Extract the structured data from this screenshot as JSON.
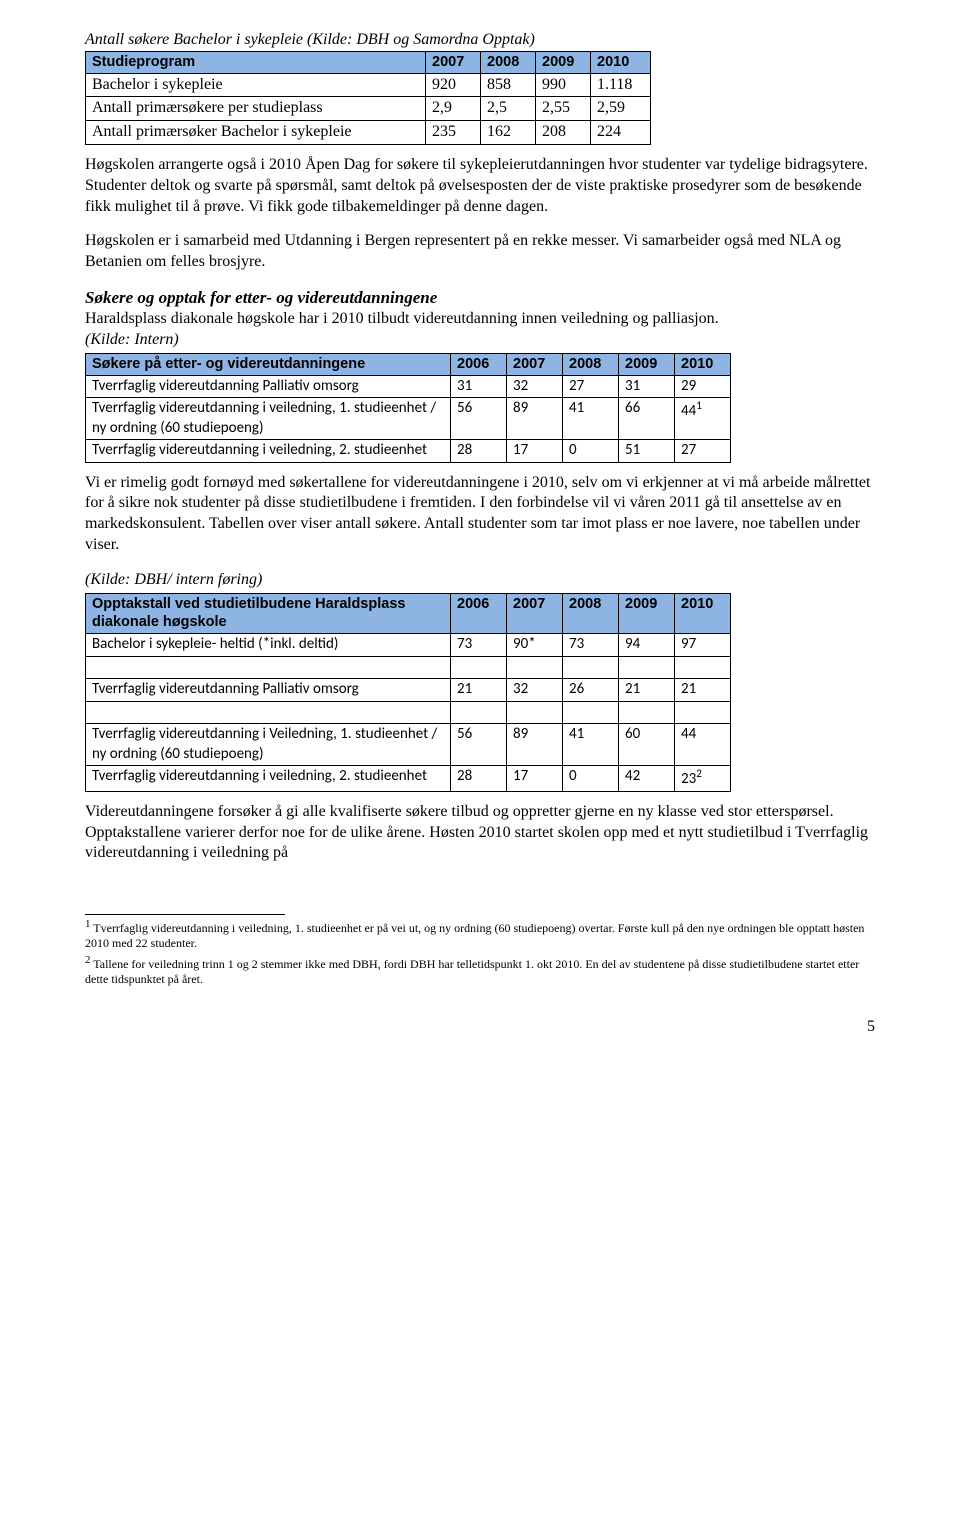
{
  "table1": {
    "caption": "Antall søkere Bachelor i sykepleie (Kilde: DBH og Samordna Opptak)",
    "header": [
      "Studieprogram",
      "2007",
      "2008",
      "2009",
      "2010"
    ],
    "rows": [
      [
        "Bachelor i sykepleie",
        "920",
        "858",
        "990",
        "1.118"
      ],
      [
        "Antall primærsøkere per studieplass",
        "2,9",
        "2,5",
        "2,55",
        "2,59"
      ],
      [
        "Antall primærsøker Bachelor i sykepleie",
        "235",
        "162",
        "208",
        "224"
      ]
    ],
    "col_widths": [
      "340px",
      "55px",
      "55px",
      "55px",
      "60px"
    ]
  },
  "para1": "Høgskolen arrangerte også i 2010 Åpen Dag for søkere til sykepleierutdanningen hvor studenter var tydelige bidragsytere. Studenter deltok og svarte på spørsmål, samt deltok på øvelsesposten der de viste praktiske prosedyrer som de besøkende fikk mulighet til å prøve. Vi fikk gode tilbakemeldinger på denne dagen.",
  "para2": "Høgskolen er i samarbeid med Utdanning i Bergen representert på en rekke messer. Vi samarbeider også med NLA og Betanien om felles brosjyre.",
  "section1": {
    "title": "Søkere og opptak for etter- og videreutdanningene",
    "text1": "Haraldsplass diakonale høgskole har i 2010 tilbudt videreutdanning innen veiledning og palliasjon.",
    "text2": " (Kilde: Intern)"
  },
  "table2": {
    "header": [
      "Søkere på etter- og videreutdanningene",
      "2006",
      "2007",
      "2008",
      "2009",
      "2010"
    ],
    "rows": [
      {
        "cells": [
          "Tverrfaglig videreutdanning Palliativ omsorg",
          "31",
          "32",
          "27",
          "31",
          "29"
        ],
        "sup": ""
      },
      {
        "cells": [
          "Tverrfaglig videreutdanning i veiledning, 1. studieenhet / ny ordning (60 studiepoeng)",
          "56",
          "89",
          "41",
          "66",
          "44"
        ],
        "sup": "1"
      },
      {
        "cells": [
          "Tverrfaglig videreutdanning i veiledning, 2. studieenhet",
          "28",
          "17",
          "0",
          "51",
          "27"
        ],
        "sup": ""
      }
    ],
    "col_widths": [
      "365px",
      "56px",
      "56px",
      "56px",
      "56px",
      "56px"
    ]
  },
  "para3": "Vi er rimelig godt fornøyd med søkertallene for videreutdanningene i 2010, selv om vi erkjenner at vi må arbeide målrettet for å sikre nok studenter på disse studietilbudene i fremtiden. I den forbindelse vil vi våren 2011 gå til ansettelse av en markedskonsulent. Tabellen over viser antall søkere. Antall studenter som tar imot plass er noe lavere, noe tabellen under viser.",
  "caption3": "(Kilde: DBH/ intern føring)",
  "table3": {
    "header": [
      "Opptakstall ved studietilbudene Haraldsplass diakonale høgskole",
      "2006",
      "2007",
      "2008",
      "2009",
      "2010"
    ],
    "rows": [
      {
        "cells": [
          "Bachelor i sykepleie- heltid (*inkl. deltid)",
          "73",
          "90*",
          "73",
          "94",
          "97"
        ],
        "sup": "",
        "spacer_after": true
      },
      {
        "cells": [
          "Tverrfaglig videreutdanning Palliativ omsorg",
          "21",
          "32",
          "26",
          "21",
          "21"
        ],
        "sup": "",
        "spacer_after": true
      },
      {
        "cells": [
          "Tverrfaglig videreutdanning i Veiledning, 1. studieenhet / ny ordning (60 studiepoeng)",
          "56",
          "89",
          "41",
          "60",
          "44"
        ],
        "sup": "",
        "spacer_after": false
      },
      {
        "cells": [
          "Tverrfaglig videreutdanning i veiledning, 2. studieenhet",
          "28",
          "17",
          "0",
          "42",
          "23"
        ],
        "sup": "2",
        "spacer_after": false
      }
    ],
    "col_widths": [
      "365px",
      "56px",
      "56px",
      "56px",
      "56px",
      "56px"
    ]
  },
  "para4": "Videreutdanningene forsøker å gi alle kvalifiserte søkere tilbud og oppretter gjerne en ny klasse ved stor etterspørsel. Opptakstallene varierer derfor noe for de ulike årene. Høsten 2010 startet skolen opp med et nytt studietilbud i Tverrfaglig videreutdanning i veiledning på",
  "footnote1": {
    "num": "1",
    "text": " Tverrfaglig videreutdanning i veiledning, 1. studieenhet er på vei ut, og ny ordning (60 studiepoeng) overtar. Første kull på den nye ordningen ble opptatt høsten 2010 med 22 studenter."
  },
  "footnote2": {
    "num": "2",
    "text": " Tallene for veiledning trinn 1 og 2 stemmer ikke med DBH, fordi DBH har telletidspunkt 1. okt 2010. En del av studentene på disse studietilbudene startet etter dette tidspunktet på året."
  },
  "page_number": "5"
}
